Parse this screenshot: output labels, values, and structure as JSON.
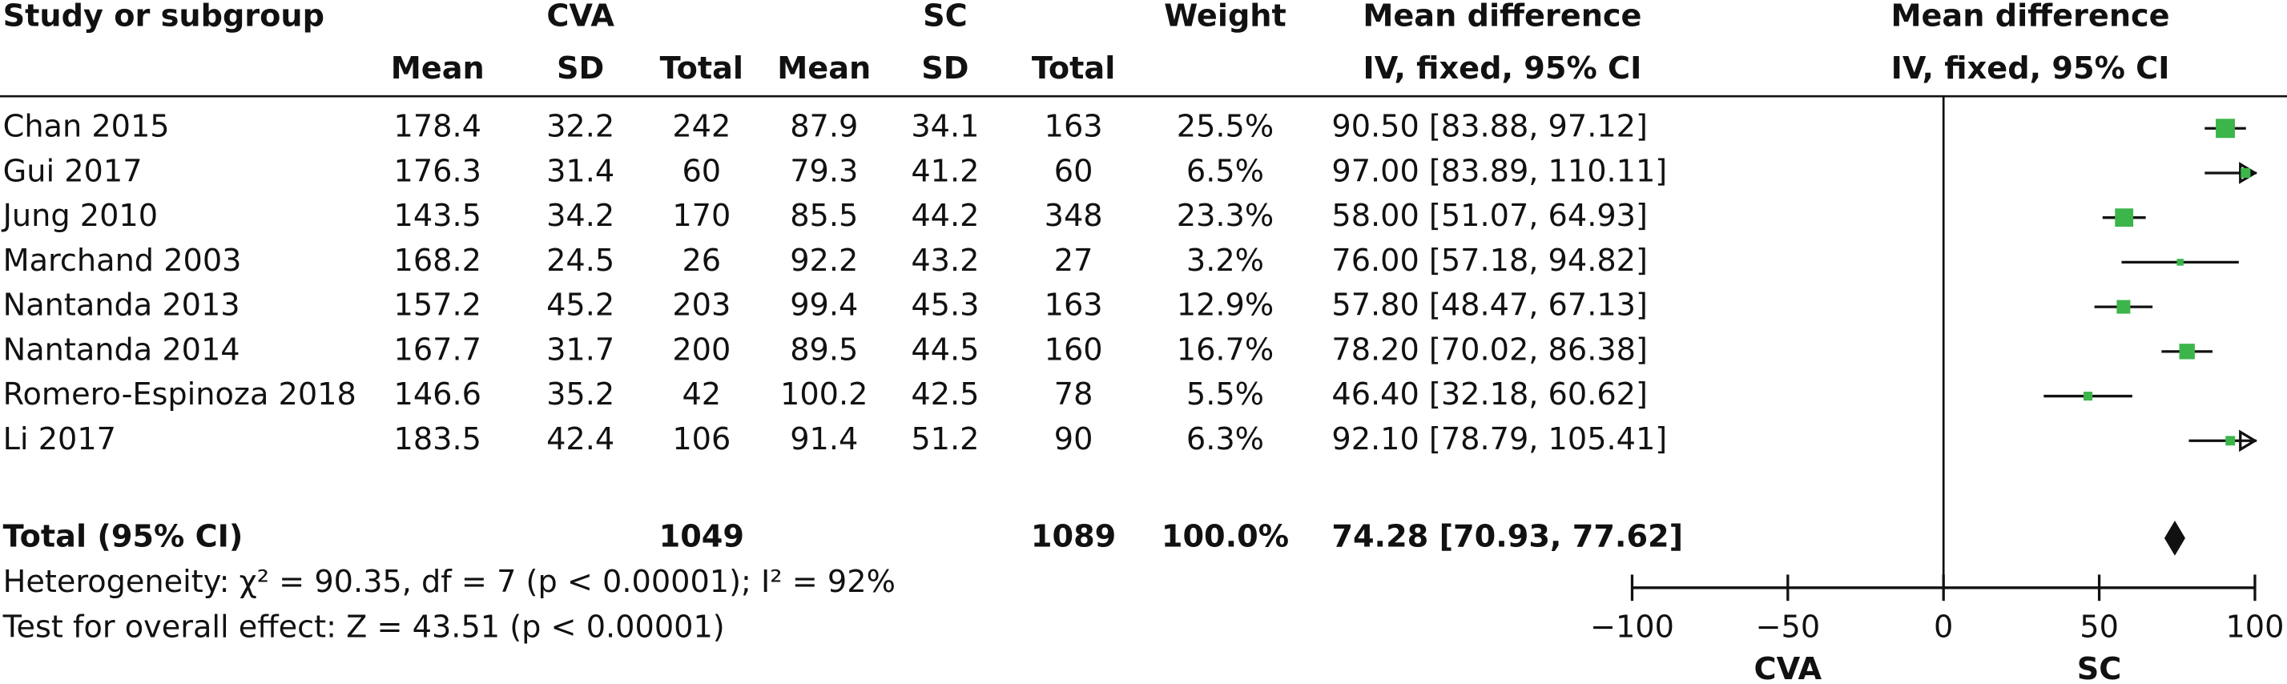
{
  "chart_data": {
    "type": "forest",
    "title": "Mean difference",
    "subtitle": "IV, fixed, 95% CI",
    "header": {
      "study": "Study or subgroup",
      "group1": "CVA",
      "group2": "SC",
      "weight": "Weight",
      "effect": "Mean difference",
      "effect_sub": "IV, fixed, 95% CI",
      "columns": [
        "Mean",
        "SD",
        "Total",
        "Mean",
        "SD",
        "Total"
      ]
    },
    "studies": [
      {
        "name": "Chan 2015",
        "cva": [
          178.4,
          32.2,
          242
        ],
        "sc": [
          87.9,
          34.1,
          163
        ],
        "weight": {
          "value": 25.5,
          "label": "25.5%"
        },
        "ci_label": "90.50 [83.88, 97.12]",
        "ci": [
          90.5,
          83.88,
          97.12
        ]
      },
      {
        "name": "Gui 2017",
        "cva": [
          176.3,
          31.4,
          60
        ],
        "sc": [
          79.3,
          41.2,
          60
        ],
        "weight": {
          "value": 6.5,
          "label": "6.5%"
        },
        "ci_label": "97.00 [83.89, 110.11]",
        "ci": [
          97,
          83.89,
          110.11
        ]
      },
      {
        "name": "Jung 2010",
        "cva": [
          143.5,
          34.2,
          170
        ],
        "sc": [
          85.5,
          44.2,
          348
        ],
        "weight": {
          "value": 23.3,
          "label": "23.3%"
        },
        "ci_label": "58.00 [51.07, 64.93]",
        "ci": [
          58,
          51.07,
          64.93
        ]
      },
      {
        "name": "Marchand 2003",
        "cva": [
          168.2,
          24.5,
          26
        ],
        "sc": [
          92.2,
          43.2,
          27
        ],
        "weight": {
          "value": 3.2,
          "label": "3.2%"
        },
        "ci_label": "76.00 [57.18, 94.82]",
        "ci": [
          76,
          57.18,
          94.82
        ]
      },
      {
        "name": "Nantanda 2013",
        "cva": [
          157.2,
          45.2,
          203
        ],
        "sc": [
          99.4,
          45.3,
          163
        ],
        "weight": {
          "value": 12.9,
          "label": "12.9%"
        },
        "ci_label": "57.80 [48.47, 67.13]",
        "ci": [
          57.8,
          48.47,
          67.13
        ]
      },
      {
        "name": "Nantanda 2014",
        "cva": [
          167.7,
          31.7,
          200
        ],
        "sc": [
          89.5,
          44.5,
          160
        ],
        "weight": {
          "value": 16.7,
          "label": "16.7%"
        },
        "ci_label": "78.20 [70.02, 86.38]",
        "ci": [
          78.2,
          70.02,
          86.38
        ]
      },
      {
        "name": "Romero-Espinoza 2018",
        "cva": [
          146.6,
          35.2,
          42
        ],
        "sc": [
          100.2,
          42.5,
          78
        ],
        "weight": {
          "value": 5.5,
          "label": "5.5%"
        },
        "ci_label": "46.40 [32.18, 60.62]",
        "ci": [
          46.4,
          32.18,
          60.62
        ]
      },
      {
        "name": "Li 2017",
        "cva": [
          183.5,
          42.4,
          106
        ],
        "sc": [
          91.4,
          51.2,
          90
        ],
        "weight": {
          "value": 6.3,
          "label": "6.3%"
        },
        "ci_label": "92.10 [78.79, 105.41]",
        "ci": [
          92.1,
          78.79,
          105.41
        ]
      }
    ],
    "total": {
      "name": "Total (95% CI)",
      "cva_total": 1049,
      "sc_total": 1089,
      "weight": {
        "value": 100,
        "label": "100.0%"
      },
      "ci_label": "74.28 [70.93, 77.62]",
      "ci": [
        74.28,
        70.93,
        77.62
      ]
    },
    "heterogeneity": "Heterogeneity: χ² = 90.35, df = 7 (p < 0.00001); I² = 92%",
    "overall_effect": "Test for overall effect: Z = 43.51 (p < 0.00001)",
    "xlim": [
      -100,
      100
    ],
    "xticks": [
      {
        "value": -100,
        "label": "−100"
      },
      {
        "value": -50,
        "label": "−50"
      },
      0,
      50,
      100
    ],
    "left_label": "CVA",
    "right_label": "SC",
    "color": "#3cb54a"
  }
}
